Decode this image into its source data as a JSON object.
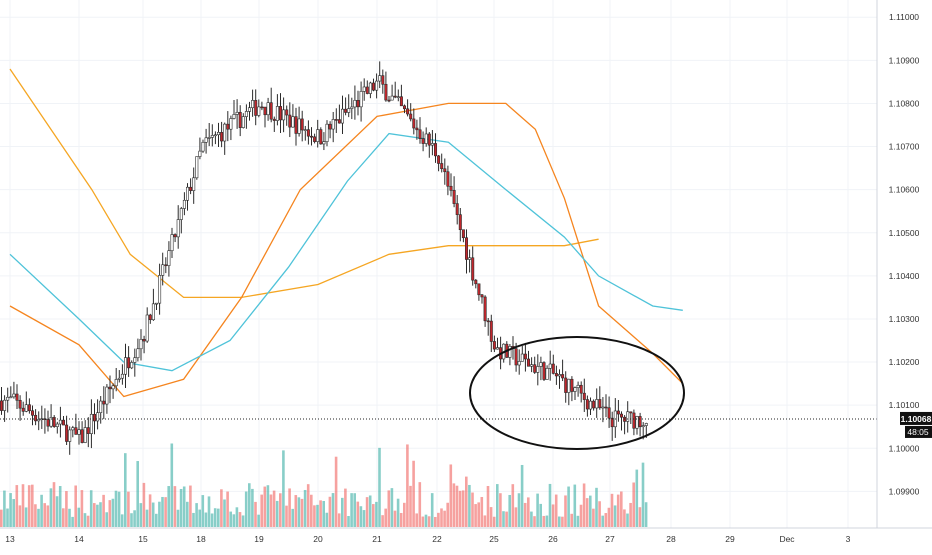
{
  "chart_data": {
    "type": "candlestick",
    "x_ticks": [
      "13",
      "14",
      "15",
      "18",
      "19",
      "20",
      "21",
      "22",
      "25",
      "26",
      "27",
      "28",
      "29",
      "Dec",
      "3"
    ],
    "y_ticks": [
      "1.09900",
      "1.10000",
      "1.10100",
      "1.10200",
      "1.10300",
      "1.10400",
      "1.10500",
      "1.10600",
      "1.10700",
      "1.10800",
      "1.10900",
      "1.11000"
    ],
    "ylim": [
      1.09815,
      1.1104
    ],
    "last_price": {
      "label": "1.10068",
      "value": 1.10068,
      "countdown": "48:05"
    },
    "price_anchors": [
      {
        "day": "13",
        "close": 1.1011
      },
      {
        "day": "14",
        "close": 1.1002
      },
      {
        "day": "15",
        "close": 1.1027
      },
      {
        "day": "18",
        "close": 1.107
      },
      {
        "day": "19",
        "close": 1.108
      },
      {
        "day": "20",
        "close": 1.1072
      },
      {
        "day": "21",
        "close": 1.1085
      },
      {
        "day": "22",
        "close": 1.1068
      },
      {
        "day": "25",
        "close": 1.1023
      },
      {
        "day": "26",
        "close": 1.1017
      },
      {
        "day": "27",
        "close": 1.10068
      }
    ],
    "moving_averages": [
      {
        "color": "#f5a623",
        "points": [
          [
            12.8,
            1.1088
          ],
          [
            14.0,
            1.106
          ],
          [
            14.6,
            1.1045
          ],
          [
            15.5,
            1.1035
          ],
          [
            16.5,
            1.1035
          ],
          [
            17.8,
            1.1038
          ],
          [
            19.0,
            1.1045
          ],
          [
            20.0,
            1.1047
          ],
          [
            21.0,
            1.1047
          ],
          [
            22.0,
            1.1047
          ],
          [
            22.6,
            1.10485
          ]
        ]
      },
      {
        "color": "#f5851f",
        "points": [
          [
            12.8,
            1.1033
          ],
          [
            13.8,
            1.1024
          ],
          [
            14.5,
            1.1012
          ],
          [
            15.5,
            1.1016
          ],
          [
            16.5,
            1.1035
          ],
          [
            17.5,
            1.106
          ],
          [
            18.8,
            1.1077
          ],
          [
            20.0,
            1.108
          ],
          [
            21.0,
            1.108
          ],
          [
            21.5,
            1.1074
          ],
          [
            22.0,
            1.1058
          ],
          [
            22.6,
            1.1033
          ],
          [
            23.5,
            1.1022
          ],
          [
            24.0,
            1.1015
          ]
        ]
      },
      {
        "color": "#4fc3d9",
        "points": [
          [
            12.8,
            1.1045
          ],
          [
            13.8,
            1.103
          ],
          [
            14.5,
            1.102
          ],
          [
            15.3,
            1.1018
          ],
          [
            16.3,
            1.1025
          ],
          [
            17.3,
            1.1042
          ],
          [
            18.3,
            1.1062
          ],
          [
            19.0,
            1.1073
          ],
          [
            20.0,
            1.1071
          ],
          [
            21.0,
            1.106
          ],
          [
            22.0,
            1.1049
          ],
          [
            22.6,
            1.104
          ],
          [
            23.5,
            1.1033
          ],
          [
            24.0,
            1.1032
          ]
        ]
      }
    ],
    "colors": {
      "up": "#26a69a",
      "down": "#ef5350",
      "candle_up": "#ffffff",
      "candle_down": "#c1272d"
    }
  }
}
